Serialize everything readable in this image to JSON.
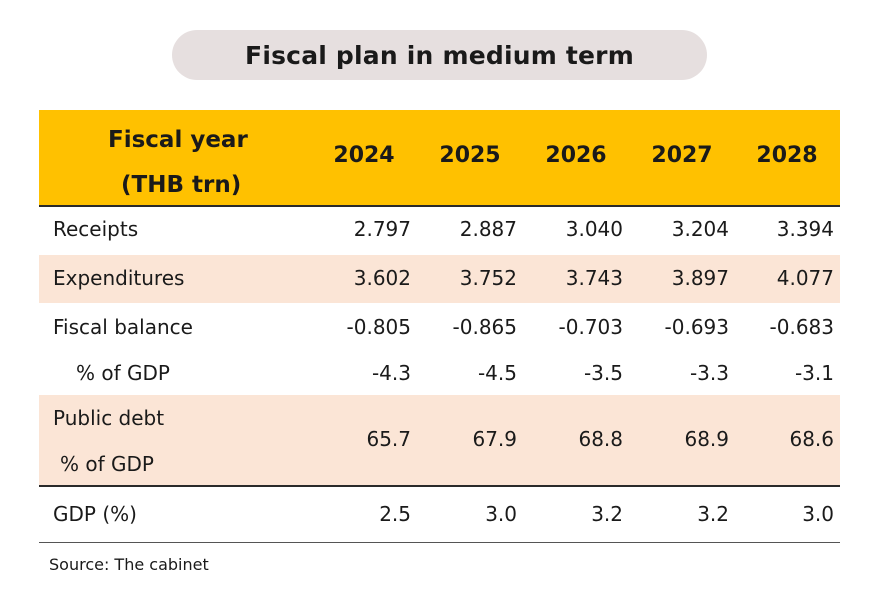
{
  "title": "Fiscal plan in medium term",
  "header": {
    "label_line1": "Fiscal year",
    "label_line2": "(THB trn)",
    "years": [
      "2024",
      "2025",
      "2026",
      "2027",
      "2028"
    ]
  },
  "rows": {
    "receipts": {
      "label": "Receipts",
      "values": [
        "2.797",
        "2.887",
        "3.040",
        "3.204",
        "3.394"
      ]
    },
    "expenditures": {
      "label": "Expenditures",
      "values": [
        "3.602",
        "3.752",
        "3.743",
        "3.897",
        "4.077"
      ]
    },
    "fiscal_balance": {
      "label": "Fiscal balance",
      "values": [
        "-0.805",
        "-0.865",
        "-0.703",
        "-0.693",
        "-0.683"
      ]
    },
    "fiscal_balance_pct": {
      "label": "% of GDP",
      "values": [
        "-4.3",
        "-4.5",
        "-3.5",
        "-3.3",
        "-3.1"
      ]
    },
    "public_debt": {
      "label_line1": "Public debt",
      "label_line2": "% of GDP",
      "values": [
        "65.7",
        "67.9",
        "68.8",
        "68.9",
        "68.6"
      ]
    },
    "gdp": {
      "label": "GDP (%)",
      "values": [
        "2.5",
        "3.0",
        "3.2",
        "3.2",
        "3.0"
      ]
    }
  },
  "source": "Source:  The cabinet",
  "colors": {
    "header_bg": "#ffc100",
    "band_bg": "#fbe5d6",
    "title_bg": "#e6dfdf"
  }
}
